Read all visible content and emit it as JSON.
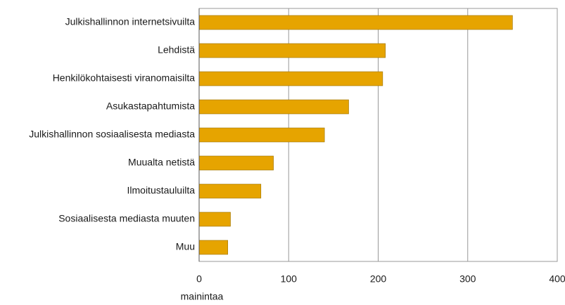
{
  "chart_data": {
    "type": "bar",
    "orientation": "horizontal",
    "categories": [
      "Julkishallinnon internetsivuilta",
      "Lehdistä",
      "Henkilökohtaisesti viranomaisilta",
      "Asukastapahtumista",
      "Julkishallinnon sosiaalisesta mediasta",
      "Muualta netistä",
      "Ilmoitustauluilta",
      "Sosiaalisesta mediasta muuten",
      "Muu"
    ],
    "values": [
      350,
      208,
      205,
      167,
      140,
      83,
      69,
      35,
      32
    ],
    "color": "#e6a400",
    "xlabel": "mainintaa",
    "xlim": [
      0,
      400
    ],
    "xticks": [
      0,
      100,
      200,
      300,
      400
    ],
    "grid": true
  }
}
